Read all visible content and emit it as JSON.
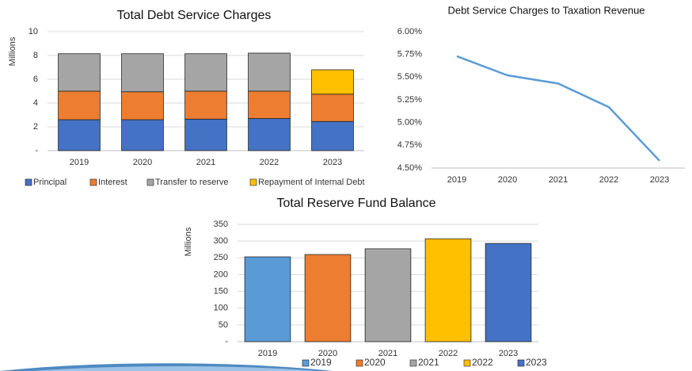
{
  "chart_data": [
    {
      "type": "stacked-bar",
      "title": "Total Debt Service Charges",
      "y_label": "Millions",
      "categories": [
        "2019",
        "2020",
        "2021",
        "2022",
        "2023"
      ],
      "series": [
        {
          "name": "Principal",
          "color": "#4472c4",
          "values": [
            2.6,
            2.6,
            2.65,
            2.7,
            2.45
          ]
        },
        {
          "name": "Interest",
          "color": "#ed7d31",
          "values": [
            2.4,
            2.35,
            2.35,
            2.3,
            2.3
          ]
        },
        {
          "name": "Transfer to reserve",
          "color": "#a5a5a5",
          "values": [
            3.15,
            3.2,
            3.15,
            3.2,
            0
          ]
        },
        {
          "name": "Repayment of Internal Debt",
          "color": "#ffc000",
          "values": [
            0,
            0,
            0,
            0,
            2.05
          ]
        }
      ],
      "ylim": [
        0,
        10
      ],
      "yticks": [
        {
          "value": 0,
          "label": "-"
        },
        2,
        4,
        6,
        8,
        10
      ],
      "grid": true
    },
    {
      "type": "line",
      "title": "Debt Service Charges to Taxation Revenue",
      "categories": [
        "2019",
        "2020",
        "2021",
        "2022",
        "2023"
      ],
      "values": [
        5.73,
        5.52,
        5.43,
        5.17,
        4.58
      ],
      "color": "#5b9bd5",
      "ylim": [
        4.5,
        6.0
      ],
      "yticks": [
        {
          "value": 4.5,
          "label": "4.50%"
        },
        {
          "value": 4.75,
          "label": "4.75%"
        },
        {
          "value": 5.0,
          "label": "5.00%"
        },
        {
          "value": 5.25,
          "label": "5.25%"
        },
        {
          "value": 5.5,
          "label": "5.50%"
        },
        {
          "value": 5.75,
          "label": "5.75%"
        },
        {
          "value": 6.0,
          "label": "6.00%"
        }
      ],
      "grid": false
    },
    {
      "type": "bar",
      "title": "Total Reserve Fund Balance",
      "y_label": "Millions",
      "categories": [
        "2019",
        "2020",
        "2021",
        "2022",
        "2023"
      ],
      "values": [
        253,
        260,
        277,
        307,
        293
      ],
      "colors": [
        "#5b9bd5",
        "#ed7d31",
        "#a5a5a5",
        "#ffc000",
        "#4472c4"
      ],
      "ylim": [
        0,
        350
      ],
      "yticks": [
        {
          "value": 0,
          "label": "-"
        },
        50,
        100,
        150,
        200,
        250,
        300,
        350
      ],
      "grid": true
    }
  ]
}
